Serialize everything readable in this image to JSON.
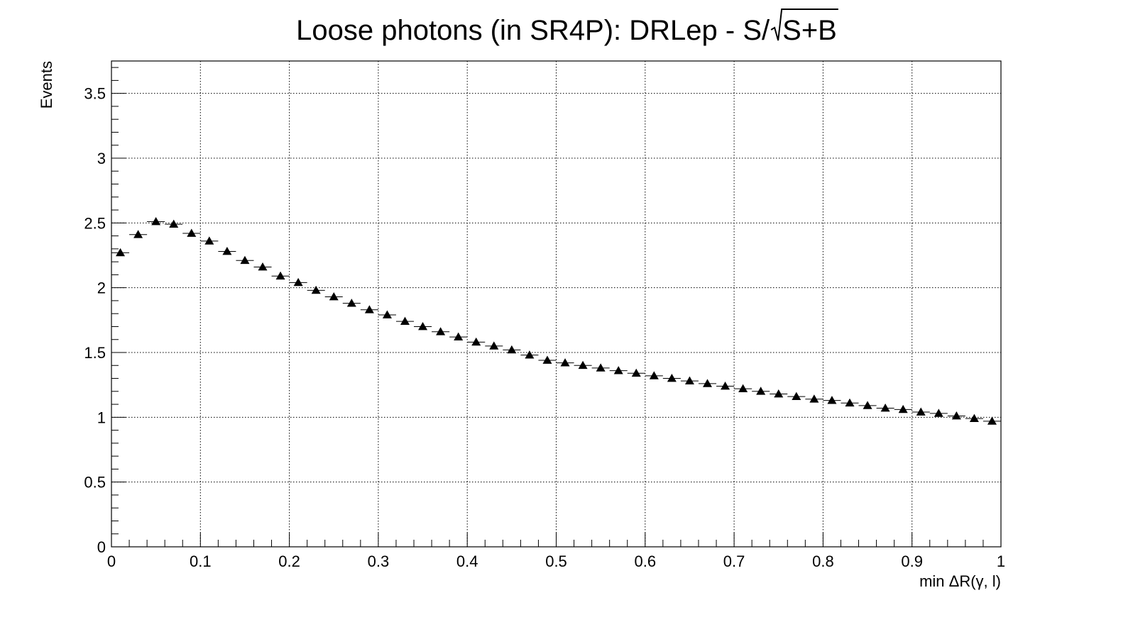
{
  "chart_data": {
    "type": "scatter",
    "title_main": "Loose photons (in SR4P): DRLep - S/",
    "title_radicand": "S+B",
    "xlabel": "min ΔR(γ, l)",
    "ylabel": "Events",
    "xlim": [
      0,
      1
    ],
    "ylim": [
      0,
      3.75
    ],
    "grid": true,
    "legend": "none",
    "marker": "triangle-up",
    "marker_color": "#000000",
    "x_ticks": [
      "0",
      "0.1",
      "0.2",
      "0.3",
      "0.4",
      "0.5",
      "0.6",
      "0.7",
      "0.8",
      "0.9",
      "1"
    ],
    "y_ticks": [
      "0",
      "0.5",
      "1",
      "1.5",
      "2",
      "2.5",
      "3",
      "3.5"
    ],
    "bin_width": 0.02,
    "x": [
      0.01,
      0.03,
      0.05,
      0.07,
      0.09,
      0.11,
      0.13,
      0.15,
      0.17,
      0.19,
      0.21,
      0.23,
      0.25,
      0.27,
      0.29,
      0.31,
      0.33,
      0.35,
      0.37,
      0.39,
      0.41,
      0.43,
      0.45,
      0.47,
      0.49,
      0.51,
      0.53,
      0.55,
      0.57,
      0.59,
      0.61,
      0.63,
      0.65,
      0.67,
      0.69,
      0.71,
      0.73,
      0.75,
      0.77,
      0.79,
      0.81,
      0.83,
      0.85,
      0.87,
      0.89,
      0.91,
      0.93,
      0.95,
      0.97,
      0.99
    ],
    "y": [
      2.27,
      2.41,
      2.51,
      2.49,
      2.42,
      2.36,
      2.28,
      2.21,
      2.16,
      2.09,
      2.04,
      1.98,
      1.93,
      1.88,
      1.83,
      1.79,
      1.74,
      1.7,
      1.66,
      1.62,
      1.58,
      1.55,
      1.52,
      1.48,
      1.44,
      1.42,
      1.4,
      1.38,
      1.36,
      1.34,
      1.32,
      1.3,
      1.28,
      1.26,
      1.24,
      1.22,
      1.2,
      1.18,
      1.16,
      1.14,
      1.13,
      1.11,
      1.09,
      1.07,
      1.06,
      1.04,
      1.03,
      1.01,
      0.99,
      0.97
    ]
  }
}
